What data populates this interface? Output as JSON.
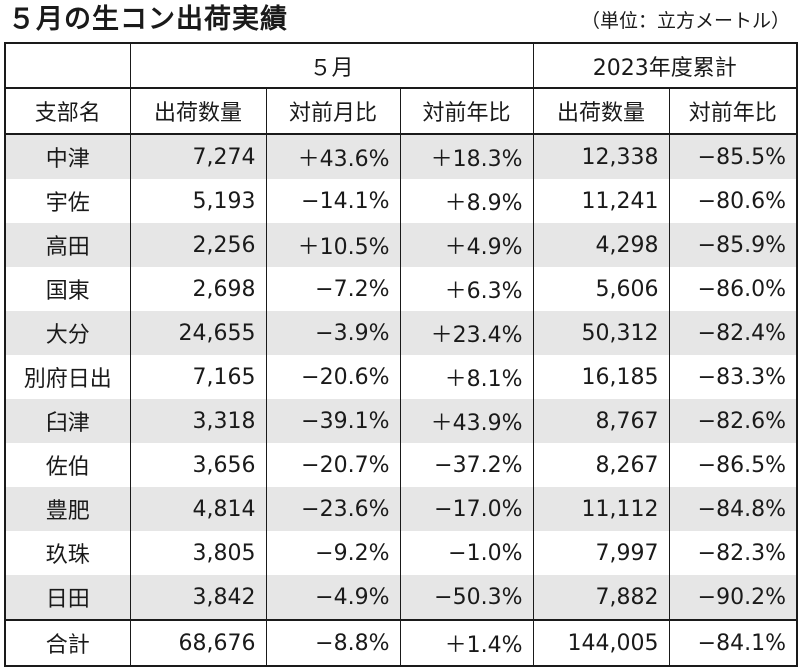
{
  "title": "５月の生コン出荷実績",
  "unit": "（単位：立方メートル）",
  "headers": {
    "group_may": "５月",
    "group_cumulative": "2023年度累計",
    "branch": "支部名",
    "may_volume": "出荷数量",
    "may_mom": "対前月比",
    "may_yoy": "対前年比",
    "cum_volume": "出荷数量",
    "cum_yoy": "対前年比"
  },
  "rows": [
    {
      "name": "中津",
      "volume": "7,274",
      "mom": "＋43.6%",
      "yoy": "＋18.3%",
      "cum_volume": "12,338",
      "cum_yoy": "−85.5%"
    },
    {
      "name": "宇佐",
      "volume": "5,193",
      "mom": "−14.1%",
      "yoy": "＋8.9%",
      "cum_volume": "11,241",
      "cum_yoy": "−80.6%"
    },
    {
      "name": "高田",
      "volume": "2,256",
      "mom": "＋10.5%",
      "yoy": "＋4.9%",
      "cum_volume": "4,298",
      "cum_yoy": "−85.9%"
    },
    {
      "name": "国東",
      "volume": "2,698",
      "mom": "−7.2%",
      "yoy": "＋6.3%",
      "cum_volume": "5,606",
      "cum_yoy": "−86.0%"
    },
    {
      "name": "大分",
      "volume": "24,655",
      "mom": "−3.9%",
      "yoy": "＋23.4%",
      "cum_volume": "50,312",
      "cum_yoy": "−82.4%"
    },
    {
      "name": "別府日出",
      "volume": "7,165",
      "mom": "−20.6%",
      "yoy": "＋8.1%",
      "cum_volume": "16,185",
      "cum_yoy": "−83.3%"
    },
    {
      "name": "臼津",
      "volume": "3,318",
      "mom": "−39.1%",
      "yoy": "＋43.9%",
      "cum_volume": "8,767",
      "cum_yoy": "−82.6%"
    },
    {
      "name": "佐伯",
      "volume": "3,656",
      "mom": "−20.7%",
      "yoy": "−37.2%",
      "cum_volume": "8,267",
      "cum_yoy": "−86.5%"
    },
    {
      "name": "豊肥",
      "volume": "4,814",
      "mom": "−23.6%",
      "yoy": "−17.0%",
      "cum_volume": "11,112",
      "cum_yoy": "−84.8%"
    },
    {
      "name": "玖珠",
      "volume": "3,805",
      "mom": "−9.2%",
      "yoy": "−1.0%",
      "cum_volume": "7,997",
      "cum_yoy": "−82.3%"
    },
    {
      "name": "日田",
      "volume": "3,842",
      "mom": "−4.9%",
      "yoy": "−50.3%",
      "cum_volume": "7,882",
      "cum_yoy": "−90.2%"
    }
  ],
  "total": {
    "name": "合計",
    "volume": "68,676",
    "mom": "−8.8%",
    "yoy": "＋1.4%",
    "cum_volume": "144,005",
    "cum_yoy": "−84.1%"
  },
  "colors": {
    "shaded_row": "#e6e6e6",
    "rule": "#1a1a1a"
  }
}
